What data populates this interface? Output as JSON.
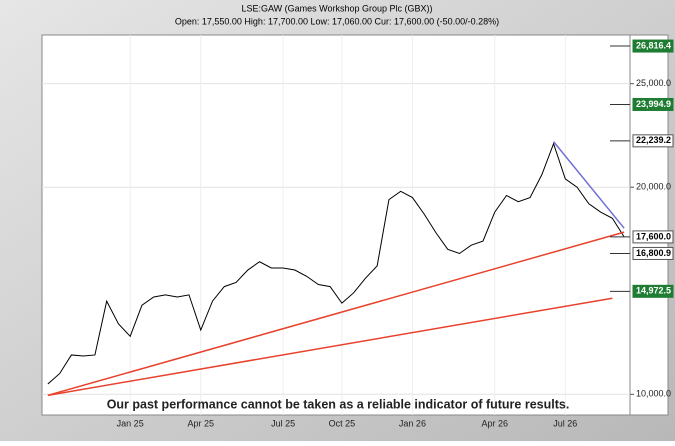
{
  "chart_data": {
    "type": "line",
    "title": "LSE:GAW (Games Workshop Group Plc (GBX))",
    "subtitle": "Open: 17,550.00 High: 17,700.00 Low: 17,060.00 Cur: 17,600.00 (-50.00/-0.28%)",
    "annotation": "Our past performance cannot be taken as a reliable indicator of future results.",
    "categories": [
      null,
      null,
      null,
      null,
      null,
      null,
      null,
      "Jan 25",
      null,
      null,
      null,
      null,
      null,
      "Apr 25",
      null,
      null,
      null,
      null,
      null,
      null,
      "Jul 25",
      null,
      null,
      null,
      null,
      "Oct 25",
      null,
      null,
      null,
      null,
      null,
      "Jan 26",
      null,
      null,
      null,
      null,
      null,
      null,
      "Apr 26",
      null,
      null,
      null,
      null,
      null,
      "Jul 26",
      null,
      null,
      null,
      null,
      null
    ],
    "values": [
      10500,
      11000,
      11900,
      11850,
      11900,
      14500,
      13400,
      12800,
      14300,
      14700,
      14800,
      14700,
      14800,
      13100,
      14500,
      15200,
      15400,
      16000,
      16400,
      16100,
      16100,
      16000,
      15700,
      15300,
      15200,
      14400,
      14900,
      15600,
      16200,
      19400,
      19800,
      19500,
      18700,
      17800,
      17000,
      16800,
      17200,
      17400,
      18800,
      19600,
      19300,
      19500,
      20600,
      22100,
      20400,
      20000,
      19200,
      18800,
      18500,
      17600
    ],
    "color": "#000000",
    "ylim": [
      9000,
      27350
    ],
    "yticks": [
      {
        "value": 10000,
        "label": "10,000.0"
      },
      {
        "value": 20000,
        "label": "20,000.0"
      },
      {
        "value": 25000,
        "label": "25,000.0"
      }
    ],
    "grid": true,
    "levels": [
      {
        "value": 26816.4,
        "label": "26,816.4",
        "color": "#1e7d32"
      },
      {
        "value": 23994.9,
        "label": "23,994.9",
        "color": "#1e7d32"
      },
      {
        "value": 22239.2,
        "label": "22,239.2",
        "color": "#ffffff"
      },
      {
        "value": 17600,
        "label": "17,600.0",
        "color": "#ffffff"
      },
      {
        "value": 16800.9,
        "label": "16,800.9",
        "color": "#ffffff"
      },
      {
        "value": 14972.5,
        "label": "14,972.5",
        "color": "#1e7d32"
      }
    ],
    "trendlines": [
      {
        "color": "#e8412c",
        "x": [
          0,
          49
        ],
        "values": [
          9950,
          17830
        ]
      },
      {
        "color": "#e8412c",
        "x": [
          0,
          48
        ],
        "values": [
          9950,
          14640
        ]
      },
      {
        "color": "#6f6fd8",
        "x": [
          43,
          49
        ],
        "values": [
          22200,
          18020
        ]
      }
    ]
  }
}
